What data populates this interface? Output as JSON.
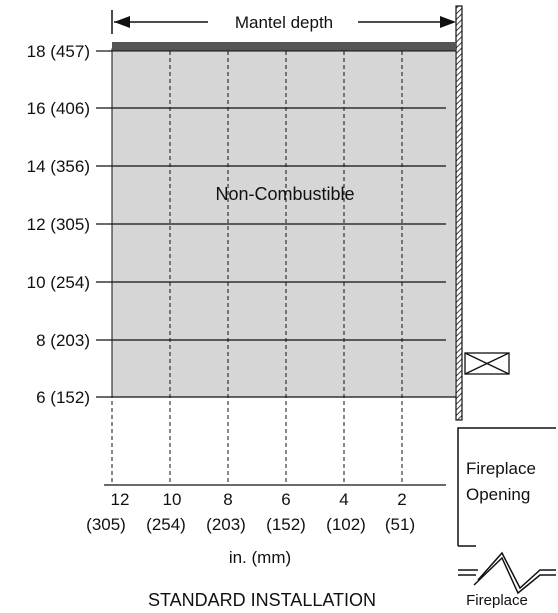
{
  "diagram": {
    "depth_label": "Mantel depth",
    "region_label": "Non-Combustible",
    "y_labels": [
      "18 (457)",
      "16 (406)",
      "14 (356)",
      "12 (305)",
      "10 (254)",
      "8 (203)",
      "6 (152)"
    ],
    "x_labels": [
      {
        "in": "12",
        "mm": "(305)"
      },
      {
        "in": "10",
        "mm": "(254)"
      },
      {
        "in": "8",
        "mm": "(203)"
      },
      {
        "in": "6",
        "mm": "(152)"
      },
      {
        "in": "4",
        "mm": "(102)"
      },
      {
        "in": "2",
        "mm": "(51)"
      }
    ],
    "units_label": "in. (mm)",
    "caption": "STANDARD INSTALLATION",
    "fireplace_opening_line1": "Fireplace",
    "fireplace_opening_line2": "Opening",
    "fireplace_label": "Fireplace",
    "colors": {
      "region_fill": "#d6d6d6",
      "mantel_bar": "#555555",
      "line": "#111111"
    }
  }
}
